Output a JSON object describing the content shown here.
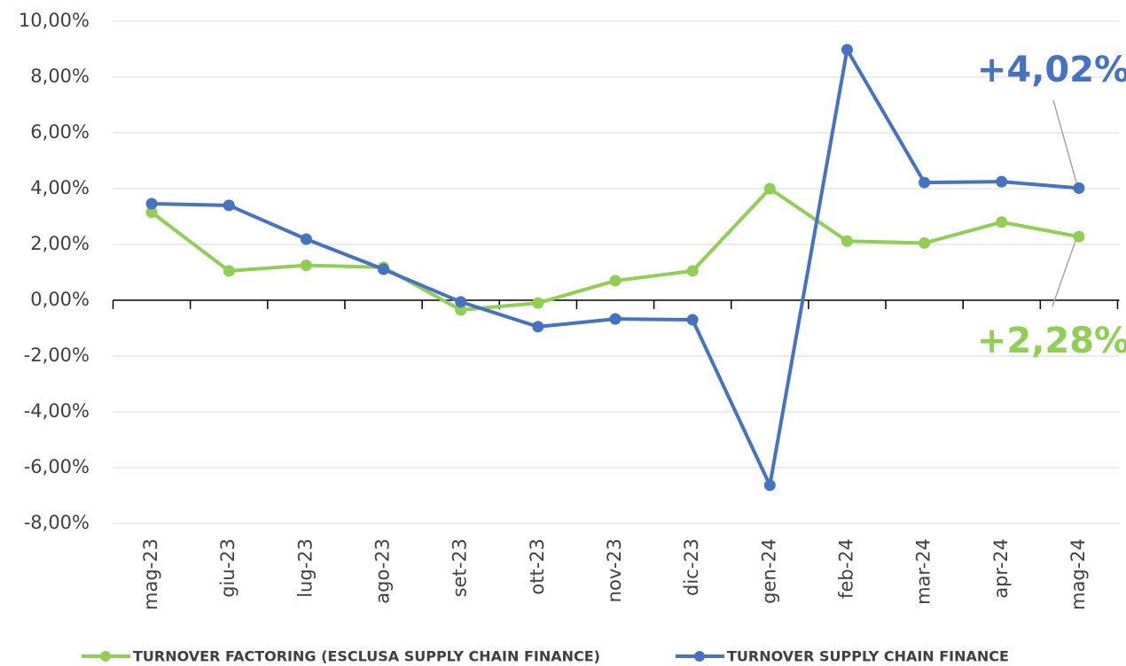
{
  "chart_data": {
    "type": "line",
    "categories": [
      "mag-23",
      "giu-23",
      "lug-23",
      "ago-23",
      "set-23",
      "ott-23",
      "nov-23",
      "dic-23",
      "gen-24",
      "feb-24",
      "mar-24",
      "apr-24",
      "mag-24"
    ],
    "series": [
      {
        "name": "TURNOVER FACTORING (ESCLUSA SUPPLY CHAIN FINANCE)",
        "color": "#8fd14f",
        "values": [
          3.15,
          1.05,
          1.25,
          1.18,
          -0.35,
          -0.1,
          0.7,
          1.05,
          4.0,
          2.12,
          2.05,
          2.8,
          2.28
        ]
      },
      {
        "name": "TURNOVER SUPPLY CHAIN FINANCE",
        "color": "#4472c4",
        "values": [
          3.46,
          3.4,
          2.19,
          1.11,
          -0.06,
          -0.95,
          -0.67,
          -0.7,
          -6.63,
          8.98,
          4.22,
          4.25,
          4.02
        ]
      }
    ],
    "annotations": [
      "+4,02%",
      "+2,28%"
    ],
    "ylim": [
      -8,
      10
    ],
    "yticks": [
      {
        "value": -8,
        "label": "-8,00%"
      },
      {
        "value": -6,
        "label": "-6,00%"
      },
      {
        "value": -4,
        "label": "-4,00%"
      },
      {
        "value": -2,
        "label": "-2,00%"
      },
      {
        "value": 0,
        "label": "0,00%"
      },
      {
        "value": 2,
        "label": "2,00%"
      },
      {
        "value": 4,
        "label": "4,00%"
      },
      {
        "value": 6,
        "label": "6,00%"
      },
      {
        "value": 8,
        "label": "8,00%"
      },
      {
        "value": 10,
        "label": "10,00%"
      }
    ],
    "grid": true,
    "legend": "bottom"
  }
}
